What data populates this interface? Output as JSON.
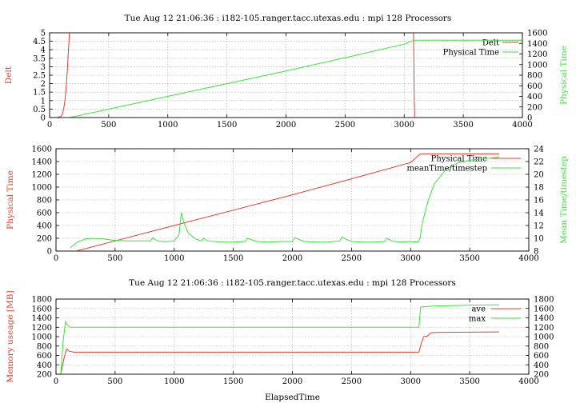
{
  "figure_title": "Tue Aug 12 21:06:36 : i182-105.ranger.tacc.utexas.edu : mpi 128 Processors",
  "chart_data": [
    {
      "type": "line",
      "title": "Tue Aug 12 21:06:36 : i182-105.ranger.tacc.utexas.edu : mpi 128 Processors",
      "xlabel": "",
      "ylabel_left": "Delt",
      "ylabel_right": "Physical Time",
      "xlim": [
        0,
        4000
      ],
      "ylim_left": [
        0,
        5
      ],
      "ylim_right": [
        0,
        1600
      ],
      "xticks": [
        "0",
        "500",
        "1000",
        "1500",
        "2000",
        "2500",
        "3000",
        "3500",
        "4000"
      ],
      "yticks_left": [
        "0",
        "0.5",
        "1",
        "1.5",
        "2",
        "2.5",
        "3",
        "3.5",
        "4",
        "4.5",
        "5"
      ],
      "yticks_right": [
        "0",
        "200",
        "400",
        "600",
        "800",
        "1000",
        "1200",
        "1400",
        "1600"
      ],
      "grid": true,
      "legend_position": "top-right",
      "series": [
        {
          "name": "Delt",
          "axis": "left",
          "color": "#e04030",
          "x": [
            60,
            80,
            100,
            110,
            120,
            130,
            140,
            150,
            160,
            168,
            3079,
            3082,
            3085,
            3088
          ],
          "y": [
            0,
            0.03,
            0.1,
            0.25,
            0.55,
            1.0,
            1.8,
            2.8,
            4.0,
            5.0,
            5.0,
            3.0,
            1.0,
            0
          ]
        },
        {
          "name": "Physical Time",
          "axis": "right",
          "color": "#40e040",
          "x": [
            170,
            500,
            1000,
            1060,
            1500,
            2000,
            2500,
            3000,
            3080,
            4000
          ],
          "y": [
            0,
            160,
            400,
            430,
            640,
            880,
            1130,
            1385,
            1460,
            1460
          ]
        }
      ]
    },
    {
      "type": "line",
      "title": "",
      "xlabel": "",
      "ylabel_left": "Physical Time",
      "ylabel_right": "Mean Time/timestep",
      "xlim": [
        0,
        4000
      ],
      "ylim_left": [
        0,
        1600
      ],
      "ylim_right": [
        8,
        24
      ],
      "xticks": [
        "0",
        "500",
        "1000",
        "1500",
        "2000",
        "2500",
        "3000",
        "3500",
        "4000"
      ],
      "yticks_left": [
        "0",
        "200",
        "400",
        "600",
        "800",
        "1000",
        "1200",
        "1400",
        "1600"
      ],
      "yticks_right": [
        "8",
        "10",
        "12",
        "14",
        "16",
        "18",
        "20",
        "22",
        "24"
      ],
      "grid": true,
      "legend_position": "top-right",
      "series": [
        {
          "name": "Physical Time",
          "axis": "left",
          "color": "#e04030",
          "x": [
            170,
            500,
            1000,
            1060,
            1500,
            2000,
            2500,
            3000,
            3080,
            3750
          ],
          "y": [
            0,
            160,
            400,
            430,
            640,
            880,
            1130,
            1385,
            1520,
            1520
          ]
        },
        {
          "name": "meanTime/timestep",
          "axis": "right",
          "color": "#40e040",
          "x": [
            120,
            180,
            250,
            300,
            400,
            480,
            500,
            600,
            700,
            800,
            820,
            840,
            860,
            900,
            950,
            1000,
            1040,
            1060,
            1080,
            1120,
            1180,
            1230,
            1250,
            1280,
            1400,
            1500,
            1600,
            1620,
            1650,
            1700,
            1800,
            1900,
            2000,
            2020,
            2060,
            2100,
            2200,
            2300,
            2400,
            2420,
            2460,
            2500,
            2600,
            2700,
            2780,
            2800,
            2840,
            2900,
            3000,
            3060,
            3080,
            3100,
            3150,
            3200,
            3300,
            3400,
            3500,
            3600,
            3700,
            3750
          ],
          "y": [
            8.5,
            9.4,
            9.9,
            10.0,
            9.9,
            9.7,
            9.7,
            9.6,
            9.6,
            9.6,
            10.1,
            9.8,
            9.6,
            9.5,
            9.5,
            9.6,
            10.5,
            14.0,
            12.5,
            10.8,
            9.9,
            9.6,
            10.0,
            9.6,
            9.4,
            9.4,
            9.5,
            10.0,
            9.8,
            9.5,
            9.4,
            9.5,
            9.5,
            10.1,
            9.8,
            9.5,
            9.4,
            9.4,
            9.6,
            10.2,
            9.8,
            9.5,
            9.4,
            9.4,
            9.5,
            10.0,
            9.6,
            9.4,
            9.5,
            9.4,
            10.0,
            12.5,
            16.0,
            18.5,
            20.8,
            21.8,
            22.2,
            22.4,
            22.6,
            22.7
          ]
        }
      ]
    },
    {
      "type": "line",
      "title": "Tue Aug 12 21:06:36 : i182-105.ranger.tacc.utexas.edu : mpi 128 Processors",
      "xlabel": "ElapsedTime",
      "ylabel_left": "Memory useage [MB]",
      "ylabel_right": "",
      "xlim": [
        0,
        4000
      ],
      "ylim_left": [
        200,
        1800
      ],
      "ylim_right": [
        200,
        1800
      ],
      "xticks": [
        "0",
        "500",
        "1000",
        "1500",
        "2000",
        "2500",
        "3000",
        "3500",
        "4000"
      ],
      "yticks_left": [
        "200",
        "400",
        "600",
        "800",
        "1000",
        "1200",
        "1400",
        "1600",
        "1800"
      ],
      "yticks_right": [
        "200",
        "400",
        "600",
        "800",
        "1000",
        "1200",
        "1400",
        "1600",
        "1800"
      ],
      "grid": true,
      "legend_position": "top-right",
      "series": [
        {
          "name": "ave",
          "axis": "left",
          "color": "#e04030",
          "x": [
            40,
            70,
            90,
            110,
            150,
            500,
            1000,
            1500,
            2000,
            2500,
            3000,
            3070,
            3090,
            3110,
            3140,
            3170,
            3200,
            3500,
            3750
          ],
          "y": [
            200,
            560,
            740,
            690,
            670,
            670,
            670,
            670,
            670,
            670,
            670,
            670,
            850,
            1000,
            1010,
            1080,
            1090,
            1095,
            1100
          ]
        },
        {
          "name": "max",
          "axis": "left",
          "color": "#40e040",
          "x": [
            40,
            60,
            80,
            100,
            120,
            140,
            500,
            1000,
            1500,
            2000,
            2500,
            3000,
            3070,
            3085,
            3200,
            3500,
            3750
          ],
          "y": [
            200,
            900,
            1320,
            1240,
            1200,
            1200,
            1200,
            1200,
            1200,
            1200,
            1200,
            1200,
            1200,
            1630,
            1650,
            1670,
            1680
          ]
        }
      ]
    }
  ]
}
